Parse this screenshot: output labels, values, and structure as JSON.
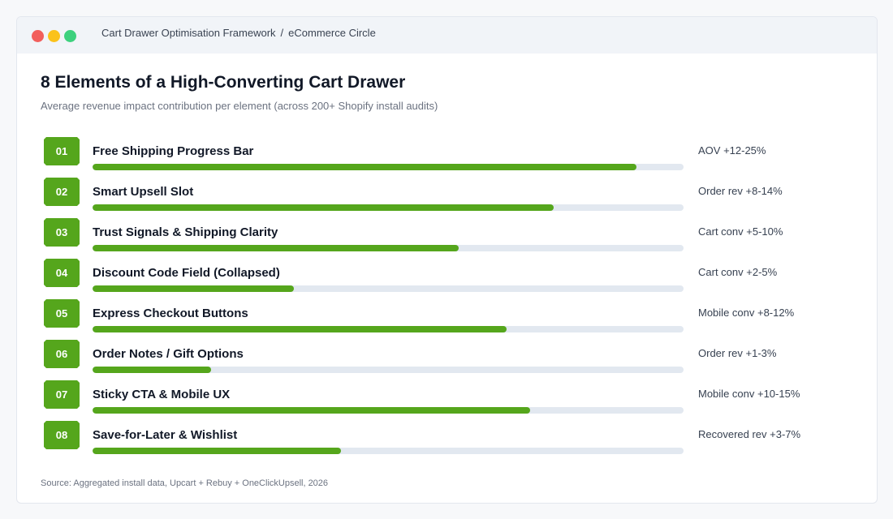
{
  "window": {
    "breadcrumb": [
      "Cart Drawer Optimisation Framework",
      "eCommerce Circle"
    ],
    "breadcrumb_separator": "/"
  },
  "header": {
    "title": "8 Elements of a High-Converting Cart Drawer",
    "subtitle": "Average revenue impact contribution per element (across 200+ Shopify install audits)"
  },
  "colors": {
    "accent": "#55a61c",
    "track": "#e2e8f0"
  },
  "elements": [
    {
      "number": "01",
      "name": "Free Shipping Progress Bar",
      "impact": "AOV +12-25%",
      "level": 0.92
    },
    {
      "number": "02",
      "name": "Smart Upsell Slot",
      "impact": "Order rev +8-14%",
      "level": 0.78
    },
    {
      "number": "03",
      "name": "Trust Signals & Shipping Clarity",
      "impact": "Cart conv +5-10%",
      "level": 0.62
    },
    {
      "number": "04",
      "name": "Discount Code Field (Collapsed)",
      "impact": "Cart conv +2-5%",
      "level": 0.34
    },
    {
      "number": "05",
      "name": "Express Checkout Buttons",
      "impact": "Mobile conv +8-12%",
      "level": 0.7
    },
    {
      "number": "06",
      "name": "Order Notes / Gift Options",
      "impact": "Order rev +1-3%",
      "level": 0.2
    },
    {
      "number": "07",
      "name": "Sticky CTA & Mobile UX",
      "impact": "Mobile conv +10-15%",
      "level": 0.74
    },
    {
      "number": "08",
      "name": "Save-for-Later & Wishlist",
      "impact": "Recovered rev +3-7%",
      "level": 0.42
    }
  ],
  "footer": {
    "source": "Source: Aggregated install data, Upcart + Rebuy + OneClickUpsell, 2026"
  }
}
